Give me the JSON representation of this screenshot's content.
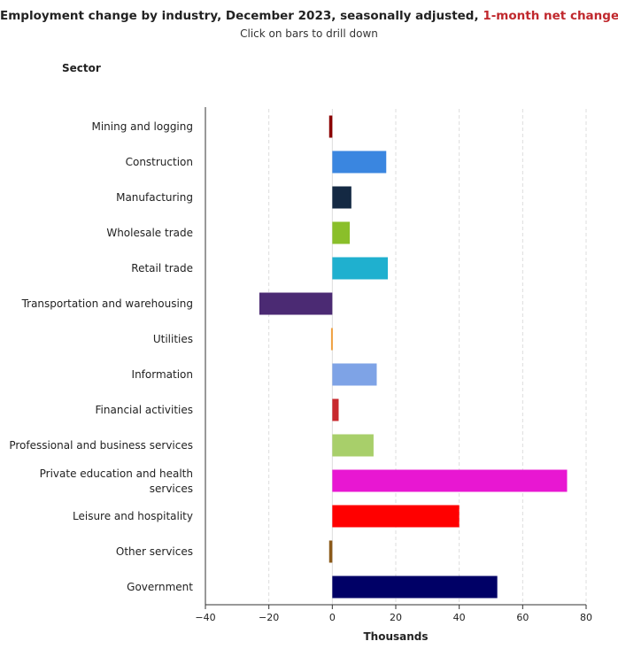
{
  "header": {
    "title_main": "Employment change by industry, December 2023, seasonally adjusted,",
    "title_accent": "1-month net change",
    "subtitle": "Click on bars to drill down",
    "y_axis_title": "Sector"
  },
  "colors": {
    "accent": "#c0282d",
    "grid": "#dddddd",
    "axis": "#333333"
  },
  "chart_data": {
    "type": "bar",
    "orientation": "horizontal",
    "title": "Employment change by industry, December 2023, seasonally adjusted, 1-month net change",
    "subtitle": "Click on bars to drill down",
    "xlabel": "Thousands",
    "ylabel": "Sector",
    "xlim": [
      -40,
      80
    ],
    "xticks": [
      -40,
      -20,
      0,
      20,
      40,
      60,
      80
    ],
    "grid": true,
    "categories": [
      "Mining and logging",
      "Construction",
      "Manufacturing",
      "Wholesale trade",
      "Retail trade",
      "Transportation and warehousing",
      "Utilities",
      "Information",
      "Financial activities",
      "Professional and business services",
      "Private education and health services",
      "Leisure and hospitality",
      "Other services",
      "Government"
    ],
    "values": [
      -1,
      17,
      6,
      5.5,
      17.5,
      -23,
      -0.4,
      14,
      2,
      13,
      74,
      40,
      -1,
      52
    ],
    "colors": [
      "#8b0000",
      "#3a86e0",
      "#142943",
      "#8abf2a",
      "#1fb0cf",
      "#4b2a73",
      "#f0a040",
      "#7ea3e6",
      "#c8282d",
      "#a8cf6a",
      "#e817d2",
      "#ff0000",
      "#8b5a1a",
      "#000066"
    ]
  }
}
